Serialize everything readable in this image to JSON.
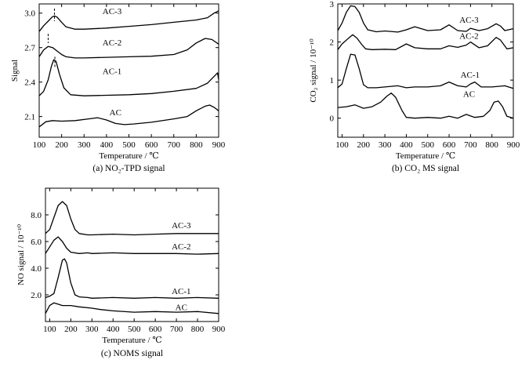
{
  "chart_data": [
    {
      "id": "a",
      "type": "line",
      "caption": "(a) NO₂-TPD signal",
      "xlabel": "Temperature / ℃",
      "ylabel": "Signal",
      "xlim": [
        100,
        900
      ],
      "ylim": [
        1.92,
        3.08
      ],
      "xticks": [
        100,
        200,
        300,
        400,
        500,
        600,
        700,
        800,
        900
      ],
      "yticks": [
        2.1,
        2.4,
        2.7,
        3.0
      ],
      "ytick_labels": [
        "2.1",
        "2.4",
        "2.7",
        "3.0"
      ],
      "peak_markers": [
        {
          "x": 168,
          "y0": 2.93,
          "y1": 3.04
        },
        {
          "x": 140,
          "y0": 2.74,
          "y1": 2.82
        },
        {
          "x": 170,
          "y0": 2.53,
          "y1": 2.62
        }
      ],
      "series": [
        {
          "name": "AC-3",
          "label_at": [
            425,
            2.99
          ],
          "x": [
            100,
            120,
            140,
            160,
            170,
            180,
            200,
            220,
            260,
            300,
            400,
            500,
            600,
            700,
            800,
            850,
            880,
            900
          ],
          "y": [
            2.84,
            2.89,
            2.93,
            2.97,
            2.975,
            2.965,
            2.92,
            2.88,
            2.86,
            2.86,
            2.87,
            2.885,
            2.9,
            2.92,
            2.94,
            2.96,
            3.0,
            3.02
          ]
        },
        {
          "name": "AC-2",
          "label_at": [
            425,
            2.72
          ],
          "x": [
            100,
            120,
            140,
            160,
            180,
            200,
            220,
            260,
            300,
            400,
            500,
            600,
            700,
            760,
            800,
            840,
            870,
            900
          ],
          "y": [
            2.62,
            2.68,
            2.71,
            2.7,
            2.67,
            2.64,
            2.62,
            2.61,
            2.61,
            2.615,
            2.62,
            2.625,
            2.64,
            2.68,
            2.74,
            2.78,
            2.77,
            2.73
          ]
        },
        {
          "name": "AC-1",
          "label_at": [
            425,
            2.47
          ],
          "x": [
            100,
            120,
            140,
            155,
            165,
            175,
            190,
            210,
            240,
            300,
            400,
            500,
            600,
            700,
            800,
            850,
            880,
            895,
            900
          ],
          "y": [
            2.28,
            2.32,
            2.42,
            2.54,
            2.595,
            2.58,
            2.47,
            2.35,
            2.29,
            2.28,
            2.285,
            2.29,
            2.3,
            2.32,
            2.345,
            2.39,
            2.45,
            2.48,
            2.42
          ]
        },
        {
          "name": "AC",
          "label_at": [
            440,
            2.11
          ],
          "x": [
            100,
            130,
            160,
            200,
            260,
            320,
            360,
            400,
            440,
            480,
            520,
            600,
            700,
            760,
            800,
            840,
            860,
            880,
            900
          ],
          "y": [
            2.01,
            2.055,
            2.065,
            2.06,
            2.065,
            2.08,
            2.09,
            2.07,
            2.04,
            2.03,
            2.035,
            2.05,
            2.08,
            2.1,
            2.15,
            2.19,
            2.2,
            2.18,
            2.15
          ]
        }
      ]
    },
    {
      "id": "b",
      "type": "line",
      "caption": "(b) CO₂ MS signal",
      "xlabel": "Temperature / ℃",
      "ylabel": "CO₂ signal / 10⁻¹⁰",
      "xlim": [
        80,
        900
      ],
      "ylim": [
        -0.5,
        3
      ],
      "xticks": [
        100,
        200,
        300,
        400,
        500,
        600,
        700,
        800,
        900
      ],
      "yticks": [
        0,
        1,
        2,
        3
      ],
      "ytick_labels": [
        "0",
        "1",
        "2",
        "3"
      ],
      "series": [
        {
          "name": "AC-3",
          "label_at": [
            693,
            2.51
          ],
          "x": [
            80,
            100,
            120,
            140,
            160,
            180,
            200,
            220,
            260,
            300,
            360,
            400,
            440,
            500,
            560,
            600,
            640,
            680,
            700,
            740,
            780,
            820,
            840,
            860,
            900
          ],
          "y": [
            2.3,
            2.5,
            2.78,
            2.95,
            2.93,
            2.78,
            2.5,
            2.32,
            2.27,
            2.29,
            2.26,
            2.32,
            2.4,
            2.3,
            2.32,
            2.45,
            2.3,
            2.28,
            2.36,
            2.3,
            2.35,
            2.48,
            2.42,
            2.3,
            2.35
          ]
        },
        {
          "name": "AC-2",
          "label_at": [
            693,
            2.08
          ],
          "x": [
            80,
            100,
            130,
            150,
            170,
            190,
            210,
            240,
            300,
            350,
            400,
            440,
            500,
            560,
            600,
            640,
            680,
            700,
            740,
            780,
            820,
            840,
            870,
            900
          ],
          "y": [
            1.8,
            1.95,
            2.1,
            2.19,
            2.1,
            1.95,
            1.82,
            1.8,
            1.81,
            1.8,
            1.95,
            1.85,
            1.82,
            1.82,
            1.9,
            1.86,
            1.92,
            2.0,
            1.85,
            1.9,
            2.12,
            2.05,
            1.82,
            1.85
          ]
        },
        {
          "name": "AC-1",
          "label_at": [
            698,
            1.06
          ],
          "x": [
            80,
            100,
            120,
            140,
            160,
            180,
            200,
            220,
            260,
            300,
            360,
            400,
            440,
            500,
            560,
            600,
            640,
            680,
            700,
            720,
            750,
            800,
            860,
            900
          ],
          "y": [
            0.8,
            0.9,
            1.3,
            1.68,
            1.66,
            1.3,
            0.88,
            0.8,
            0.8,
            0.82,
            0.85,
            0.8,
            0.82,
            0.82,
            0.85,
            0.95,
            0.85,
            0.82,
            0.9,
            0.95,
            0.82,
            0.82,
            0.85,
            0.78
          ]
        },
        {
          "name": "AC",
          "label_at": [
            693,
            0.56
          ],
          "x": [
            80,
            120,
            160,
            200,
            240,
            280,
            310,
            330,
            350,
            380,
            400,
            440,
            500,
            560,
            600,
            640,
            680,
            720,
            760,
            790,
            810,
            830,
            850,
            870,
            900
          ],
          "y": [
            0.28,
            0.3,
            0.35,
            0.26,
            0.3,
            0.42,
            0.58,
            0.66,
            0.55,
            0.2,
            0.02,
            0.0,
            0.02,
            0.0,
            0.05,
            0.0,
            0.1,
            0.02,
            0.05,
            0.2,
            0.42,
            0.45,
            0.3,
            0.05,
            0.0
          ]
        }
      ]
    },
    {
      "id": "c",
      "type": "line",
      "caption": "(c) NOMS signal",
      "xlabel": "Temperature / ℃",
      "ylabel": "NO signal / 10⁻¹⁰",
      "xlim": [
        80,
        900
      ],
      "ylim": [
        0,
        10
      ],
      "xticks": [
        100,
        200,
        300,
        400,
        500,
        600,
        700,
        800,
        900
      ],
      "yticks": [
        2,
        4,
        6,
        8
      ],
      "ytick_labels": [
        "2.0",
        "4.0",
        "6.0",
        "8.0"
      ],
      "series": [
        {
          "name": "AC-3",
          "label_at": [
            723,
            7.0
          ],
          "x": [
            80,
            100,
            120,
            140,
            160,
            180,
            200,
            220,
            240,
            280,
            300,
            400,
            500,
            600,
            700,
            800,
            900
          ],
          "y": [
            6.6,
            6.9,
            7.8,
            8.7,
            9.0,
            8.7,
            7.7,
            6.9,
            6.6,
            6.5,
            6.5,
            6.55,
            6.5,
            6.55,
            6.6,
            6.6,
            6.6
          ]
        },
        {
          "name": "AC-2",
          "label_at": [
            723,
            5.4
          ],
          "x": [
            80,
            100,
            120,
            140,
            160,
            180,
            200,
            240,
            280,
            300,
            400,
            500,
            600,
            700,
            800,
            900
          ],
          "y": [
            5.1,
            5.6,
            6.1,
            6.35,
            6.0,
            5.5,
            5.2,
            5.1,
            5.15,
            5.1,
            5.15,
            5.1,
            5.1,
            5.1,
            5.05,
            5.1
          ]
        },
        {
          "name": "AC-1",
          "label_at": [
            723,
            2.05
          ],
          "x": [
            80,
            100,
            120,
            140,
            160,
            170,
            180,
            200,
            220,
            240,
            280,
            300,
            400,
            500,
            600,
            700,
            800,
            900
          ],
          "y": [
            1.8,
            1.9,
            2.1,
            3.3,
            4.6,
            4.7,
            4.4,
            2.9,
            2.0,
            1.85,
            1.8,
            1.75,
            1.8,
            1.75,
            1.8,
            1.75,
            1.8,
            1.75
          ]
        },
        {
          "name": "AC",
          "label_at": [
            723,
            0.85
          ],
          "x": [
            80,
            100,
            120,
            140,
            160,
            200,
            240,
            300,
            340,
            400,
            500,
            600,
            700,
            800,
            900
          ],
          "y": [
            0.6,
            1.2,
            1.4,
            1.3,
            1.2,
            1.2,
            1.1,
            1.0,
            0.9,
            0.8,
            0.7,
            0.75,
            0.7,
            0.75,
            0.6
          ]
        }
      ]
    }
  ]
}
